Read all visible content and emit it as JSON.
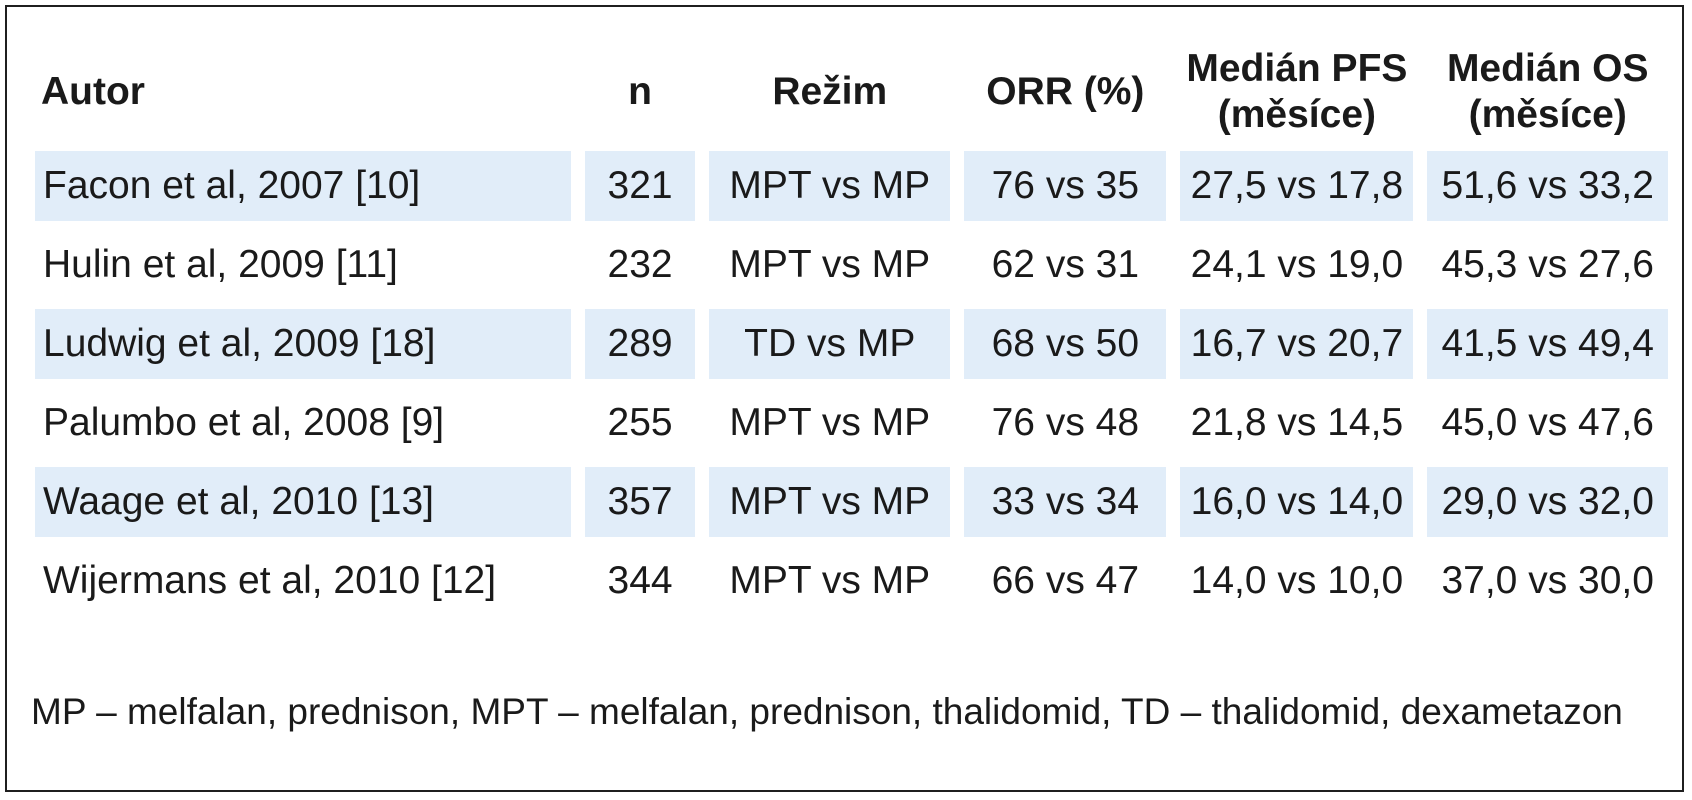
{
  "table": {
    "headers": {
      "autor": "Autor",
      "n": "n",
      "rezim": "Režim",
      "orr": "ORR (%)",
      "pfs_line1": "Medián PFS",
      "pfs_line2": "(měsíce)",
      "os_line1": "Medián OS",
      "os_line2": "(měsíce)"
    },
    "rows": [
      {
        "autor": "Facon et al, 2007 [10]",
        "n": "321",
        "rezim": "MPT vs MP",
        "orr": "76 vs 35",
        "pfs": "27,5 vs 17,8",
        "os": "51,6 vs 33,2"
      },
      {
        "autor": "Hulin et al, 2009 [11]",
        "n": "232",
        "rezim": "MPT vs MP",
        "orr": "62 vs 31",
        "pfs": "24,1 vs 19,0",
        "os": "45,3 vs 27,6"
      },
      {
        "autor": "Ludwig et al, 2009 [18]",
        "n": "289",
        "rezim": "TD vs MP",
        "orr": "68 vs 50",
        "pfs": "16,7 vs 20,7",
        "os": "41,5 vs 49,4"
      },
      {
        "autor": "Palumbo et al, 2008 [9]",
        "n": "255",
        "rezim": "MPT vs MP",
        "orr": "76 vs 48",
        "pfs": "21,8 vs 14,5",
        "os": "45,0 vs 47,6"
      },
      {
        "autor": "Waage et al, 2010 [13]",
        "n": "357",
        "rezim": "MPT vs MP",
        "orr": "33 vs 34",
        "pfs": "16,0 vs 14,0",
        "os": "29,0 vs 32,0"
      },
      {
        "autor": "Wijermans et al, 2010 [12]",
        "n": "344",
        "rezim": "MPT vs MP",
        "orr": "66 vs 47",
        "pfs": "14,0 vs 10,0",
        "os": "37,0 vs 30,0"
      }
    ]
  },
  "colors": {
    "row_shade": "#e1edf9",
    "border": "#1f1f1f",
    "text": "#1a1a1a"
  },
  "footnote": "MP – melfalan, prednison, MPT – melfalan, prednison, thalidomid, TD – thalidomid, dexametazon"
}
